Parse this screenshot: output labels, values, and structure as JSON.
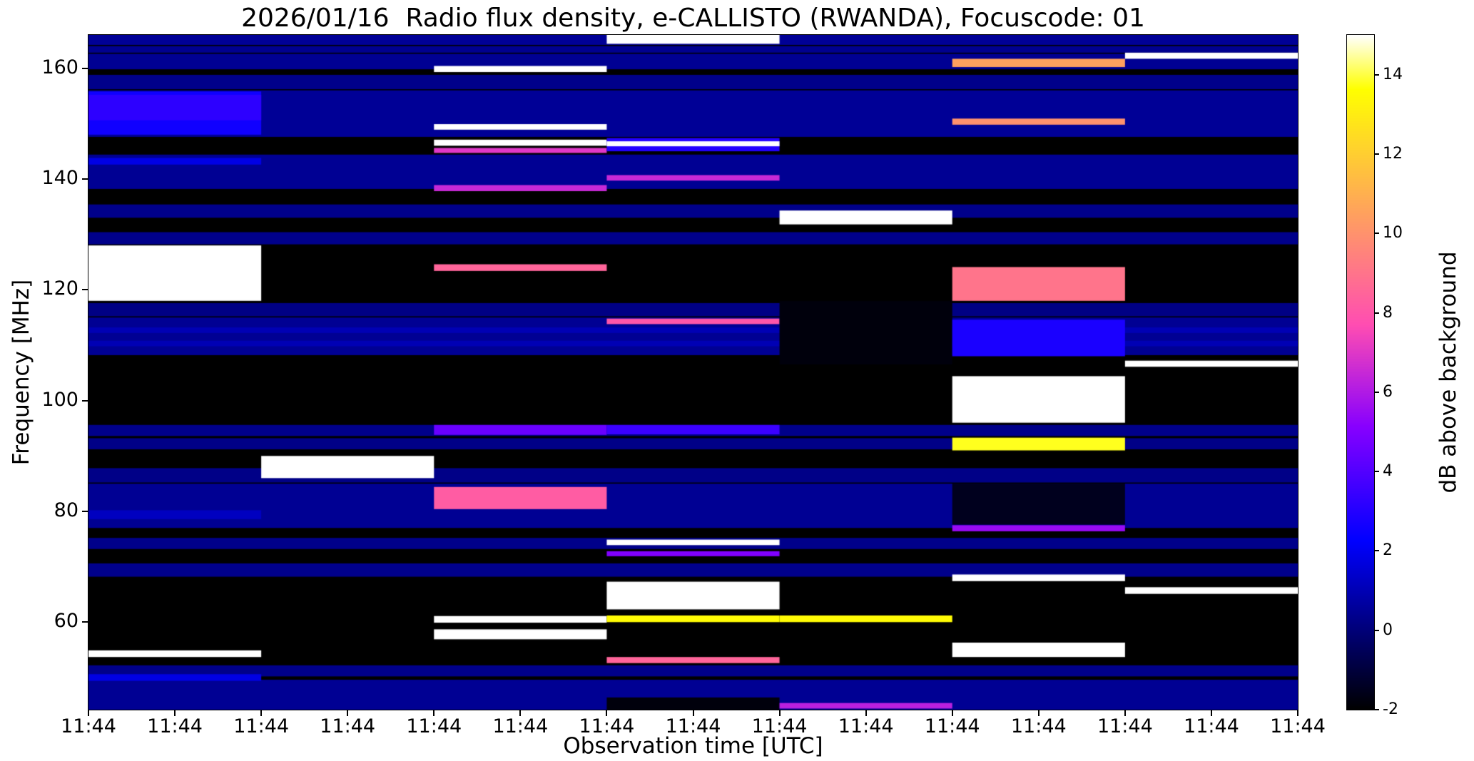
{
  "chart_data": {
    "type": "heatmap",
    "title": "2026/01/16  Radio flux density, e-CALLISTO (RWANDA), Focuscode: 01",
    "xlabel": "Observation time [UTC]",
    "ylabel": "Frequency [MHz]",
    "colorbar_label": "dB above background",
    "colormap": "gnuplot2",
    "vmin": -2,
    "vmax": 15,
    "background_db": -2,
    "freq_range": [
      44.2,
      166.0
    ],
    "time_columns": 7,
    "x_tick_labels": [
      "11:44",
      "11:44",
      "11:44",
      "11:44",
      "11:44",
      "11:44",
      "11:44",
      "11:44",
      "11:44",
      "11:44",
      "11:44",
      "11:44",
      "11:44",
      "11:44",
      "11:44"
    ],
    "y_ticks": [
      60,
      80,
      100,
      120,
      140,
      160
    ],
    "colorbar_ticks": [
      -2,
      0,
      2,
      4,
      6,
      8,
      10,
      12,
      14
    ],
    "base_rows": [
      [
        164.2,
        166.0,
        0.5
      ],
      [
        162.8,
        164.0,
        0.4
      ],
      [
        159.8,
        162.6,
        0.45
      ],
      [
        156.2,
        158.8,
        0.3
      ],
      [
        147.6,
        156.0,
        0.5
      ],
      [
        138.2,
        144.4,
        0.45
      ],
      [
        133.0,
        135.4,
        0.3
      ],
      [
        128.2,
        130.4,
        0.3
      ],
      [
        115.2,
        117.6,
        0.2
      ],
      [
        108.2,
        115.0,
        0.45
      ],
      [
        109.8,
        110.8,
        1.0
      ],
      [
        112.2,
        113.2,
        1.0
      ],
      [
        93.6,
        95.6,
        0.3
      ],
      [
        91.2,
        93.2,
        0.25
      ],
      [
        85.2,
        87.8,
        0.25
      ],
      [
        77.0,
        85.0,
        0.45
      ],
      [
        73.2,
        75.2,
        0.3
      ],
      [
        68.2,
        70.6,
        0.3
      ],
      [
        50.2,
        52.2,
        0.3
      ],
      [
        44.2,
        49.6,
        0.45
      ]
    ],
    "columns": [
      [
        [
          148.0,
          155.8,
          2.6
        ],
        [
          150.6,
          155.2,
          3.2
        ],
        [
          142.6,
          143.8,
          1.8
        ],
        [
          118.0,
          128.0,
          15
        ],
        [
          78.6,
          80.2,
          1.2
        ],
        [
          53.7,
          54.9,
          15
        ],
        [
          49.4,
          50.6,
          1.8
        ]
      ],
      [
        [
          86.0,
          90.0,
          15
        ]
      ],
      [
        [
          159.3,
          160.4,
          15
        ],
        [
          148.9,
          149.9,
          15
        ],
        [
          146.0,
          147.1,
          15
        ],
        [
          144.7,
          145.6,
          7.0
        ],
        [
          137.8,
          138.9,
          6.5
        ],
        [
          123.4,
          124.6,
          8.5
        ],
        [
          93.8,
          95.6,
          4.5
        ],
        [
          80.4,
          84.4,
          8.2
        ],
        [
          59.9,
          61.1,
          15
        ],
        [
          56.9,
          58.7,
          15
        ]
      ],
      [
        [
          164.4,
          166.0,
          15
        ],
        [
          145.0,
          147.4,
          3.0
        ],
        [
          145.9,
          146.8,
          15
        ],
        [
          139.7,
          140.7,
          6.5
        ],
        [
          113.8,
          114.8,
          8.0
        ],
        [
          93.9,
          95.6,
          3.5
        ],
        [
          73.9,
          74.9,
          15
        ],
        [
          71.9,
          72.8,
          5.0
        ],
        [
          62.3,
          67.3,
          15
        ],
        [
          60.0,
          61.2,
          13.5
        ],
        [
          52.6,
          53.7,
          8.5
        ],
        [
          44.2,
          46.4,
          -1.8
        ]
      ],
      [
        [
          131.8,
          134.3,
          15
        ],
        [
          106.5,
          118.0,
          -1.8
        ],
        [
          60.0,
          61.2,
          13.5
        ],
        [
          44.4,
          45.4,
          6.2
        ]
      ],
      [
        [
          160.2,
          161.7,
          10.5
        ],
        [
          149.8,
          150.9,
          10.0
        ],
        [
          118.0,
          124.1,
          9.0
        ],
        [
          108.0,
          114.6,
          2.8
        ],
        [
          96.0,
          104.4,
          15
        ],
        [
          91.0,
          93.3,
          13.8
        ],
        [
          77.6,
          85.0,
          -1.5
        ],
        [
          76.4,
          77.5,
          5.5
        ],
        [
          67.4,
          68.6,
          15
        ],
        [
          53.7,
          56.3,
          15
        ]
      ],
      [
        [
          161.7,
          162.8,
          15
        ],
        [
          106.1,
          107.2,
          15
        ],
        [
          65.1,
          66.3,
          15
        ]
      ]
    ]
  }
}
